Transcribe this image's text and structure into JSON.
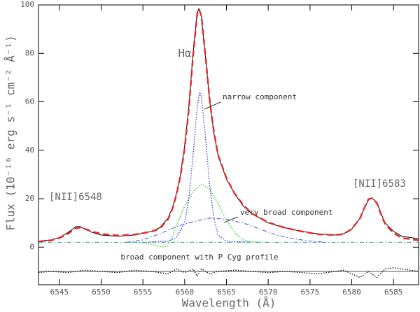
{
  "chart_data": {
    "type": "line",
    "xlabel": "Wavelength (Å)",
    "ylabel": "Flux (10⁻¹⁶ erg s⁻¹ cm⁻² Å⁻¹)",
    "annotations": [
      "Hα",
      "narrow component",
      "very broad component",
      "broad component with P Cyg profile",
      "[NII]6548",
      "[NII]6583"
    ],
    "xlim": [
      6542.5,
      6588
    ],
    "ylim": [
      -15.5,
      100
    ],
    "xticks": [
      6545,
      6550,
      6555,
      6560,
      6565,
      6570,
      6575,
      6580,
      6585
    ],
    "yticks": [
      0,
      20,
      40,
      60,
      80,
      100
    ],
    "series": [
      {
        "color": "#000000",
        "style": "solid",
        "x": [
          6542.5,
          6544,
          6545,
          6546,
          6547,
          6547.5,
          6548,
          6549,
          6550,
          6552,
          6554,
          6556,
          6557,
          6558,
          6558.5,
          6559,
          6559.5,
          6560,
          6560.5,
          6561,
          6561.5,
          6561.7,
          6562,
          6562.5,
          6563,
          6563.5,
          6564,
          6565,
          6566,
          6567,
          6568,
          6570,
          6572,
          6574,
          6576,
          6578,
          6579,
          6580,
          6581,
          6581.5,
          6582,
          6582.4,
          6583,
          6583.5,
          6584,
          6585,
          6586,
          6588
        ],
        "values": [
          2.5,
          3,
          4,
          6,
          8.5,
          8.5,
          7.5,
          6,
          5,
          4.5,
          5,
          6.5,
          8,
          12,
          16,
          22,
          30,
          42,
          58,
          80,
          97,
          98.5,
          95,
          78,
          60,
          47,
          38,
          28,
          22,
          17,
          14,
          10,
          8,
          6.5,
          5.5,
          5,
          5.5,
          7.5,
          12,
          16,
          19.5,
          20.3,
          18.5,
          14,
          10,
          6.5,
          4.5,
          3.5
        ]
      },
      {
        "color": "#e8262a",
        "style": "dashed",
        "x": [
          6542.5,
          6544,
          6545,
          6546,
          6547,
          6547.5,
          6548,
          6549,
          6550,
          6552,
          6554,
          6556,
          6557,
          6558,
          6558.5,
          6559,
          6559.5,
          6560,
          6560.5,
          6561,
          6561.5,
          6561.7,
          6562,
          6562.5,
          6563,
          6563.5,
          6564,
          6565,
          6566,
          6567,
          6568,
          6570,
          6572,
          6574,
          6576,
          6578,
          6579,
          6580,
          6581,
          6581.5,
          6582,
          6582.4,
          6583,
          6583.5,
          6584,
          6585,
          6586,
          6588
        ],
        "values": [
          2.3,
          2.8,
          3.8,
          5.5,
          7.8,
          8.1,
          7.6,
          6.4,
          5.5,
          4.8,
          5.2,
          6.4,
          7.6,
          11.5,
          15.5,
          21.5,
          29.5,
          41,
          57,
          79,
          96.5,
          98.3,
          95.5,
          78.5,
          60.5,
          47.5,
          38,
          28.5,
          22,
          17.5,
          14,
          10.2,
          8,
          6.5,
          5.3,
          5,
          5.4,
          7.5,
          12,
          16.2,
          19.8,
          20.2,
          18.3,
          13.5,
          9.5,
          5.8,
          3.8,
          2.8
        ]
      },
      {
        "color": "#3333dd",
        "style": "dotted",
        "x": [
          6555,
          6558,
          6559,
          6560,
          6560.5,
          6561,
          6561.5,
          6561.8,
          6562,
          6562.5,
          6563,
          6563.5,
          6564,
          6565,
          6568
        ],
        "values": [
          2,
          2.5,
          4,
          10,
          20,
          38,
          58,
          64,
          62,
          45,
          25,
          12,
          5,
          2.5,
          2
        ]
      },
      {
        "color": "#22cc22",
        "style": "dotted",
        "x": [
          6553,
          6555,
          6556,
          6557,
          6557.5,
          6558,
          6558.5,
          6559,
          6560,
          6561,
          6562,
          6563,
          6564,
          6565,
          6566,
          6567,
          6568,
          6570
        ],
        "values": [
          2,
          1.8,
          1.2,
          0.3,
          0,
          1,
          4,
          9,
          17,
          23,
          26,
          24,
          18,
          11,
          6,
          3,
          2.2,
          2
        ]
      },
      {
        "color": "#4444ee",
        "style": "dashdot",
        "x": [
          6553,
          6555,
          6557,
          6559,
          6561,
          6563,
          6565,
          6567,
          6569,
          6571,
          6573,
          6575,
          6577
        ],
        "values": [
          2,
          3,
          5.5,
          8.5,
          10.5,
          12,
          11.5,
          10,
          7.5,
          5,
          3.5,
          2.5,
          2
        ]
      },
      {
        "color": "#22aa88",
        "style": "dashdot",
        "x": [
          6542.5,
          6588
        ],
        "values": [
          2,
          2
        ]
      },
      {
        "color": "#555555",
        "style": "solid",
        "x": [
          6542.5,
          6588
        ],
        "values": [
          -10,
          -10
        ]
      },
      {
        "color": "#000000",
        "style": "dotted",
        "x": [
          6542.5,
          6544,
          6546,
          6548,
          6550,
          6552,
          6554,
          6556,
          6558,
          6559,
          6560,
          6561,
          6561.5,
          6562,
          6563,
          6564,
          6566,
          6568,
          6570,
          6572,
          6574,
          6576,
          6578,
          6579,
          6580,
          6581,
          6582,
          6583,
          6584,
          6585,
          6586,
          6588
        ],
        "values": [
          -10.5,
          -10,
          -10.5,
          -9.5,
          -10,
          -10.5,
          -9.5,
          -10,
          -11,
          -9,
          -10.5,
          -9,
          -12,
          -9,
          -11,
          -10,
          -9.5,
          -10,
          -10.5,
          -10,
          -10.5,
          -11,
          -10,
          -9.5,
          -11,
          -12.5,
          -10,
          -12.5,
          -9,
          -8.5,
          -9,
          -10
        ]
      }
    ]
  }
}
